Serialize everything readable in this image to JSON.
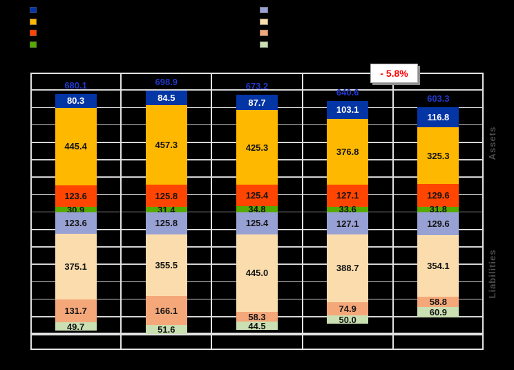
{
  "page": {
    "background": "#000000"
  },
  "legend": {
    "left_items": [
      {
        "name": "navy",
        "color": "#0435A5"
      },
      {
        "name": "amber",
        "color": "#FFB800"
      },
      {
        "name": "orange-red",
        "color": "#FF4500"
      },
      {
        "name": "green",
        "color": "#55AA00"
      }
    ],
    "right_items": [
      {
        "name": "periwinkle",
        "color": "#98A1D3"
      },
      {
        "name": "tan",
        "color": "#FBDDAD"
      },
      {
        "name": "salmon",
        "color": "#F4A87A"
      },
      {
        "name": "light-green",
        "color": "#CADFB2"
      }
    ]
  },
  "chart_data": {
    "type": "bar",
    "stacked": true,
    "diverging": true,
    "columns": 5,
    "categories": [
      "",
      "",
      "",
      "",
      ""
    ],
    "totals": {
      "values": [
        "680.1",
        "698.9",
        "673.2",
        "640.6",
        "603.3"
      ],
      "color": "#2139CE"
    },
    "series_assets": [
      {
        "name": "navy",
        "color": "#0435A5",
        "label_color": "#FFFFFF",
        "values": [
          "80.3",
          "84.5",
          "87.7",
          "103.1",
          "116.8"
        ]
      },
      {
        "name": "amber",
        "color": "#FFB800",
        "label_color": "#141414",
        "values": [
          "445.4",
          "457.3",
          "425.3",
          "376.8",
          "325.3"
        ]
      },
      {
        "name": "orange-red",
        "color": "#FF4500",
        "label_color": "#141414",
        "values": [
          "123.6",
          "125.8",
          "125.4",
          "127.1",
          "129.6"
        ]
      },
      {
        "name": "green",
        "color": "#55AA00",
        "label_color": "#141414",
        "values": [
          "30.9",
          "31.4",
          "34.8",
          "33.6",
          "31.8"
        ]
      }
    ],
    "series_liabilities": [
      {
        "name": "periwinkle",
        "color": "#98A1D3",
        "label_color": "#141414",
        "values": [
          "123.6",
          "125.8",
          "125.4",
          "127.1",
          "129.6"
        ]
      },
      {
        "name": "tan",
        "color": "#FBDDAD",
        "label_color": "#141414",
        "values": [
          "375.1",
          "355.5",
          "445.0",
          "388.7",
          "354.1"
        ]
      },
      {
        "name": "salmon",
        "color": "#F4A87A",
        "label_color": "#141414",
        "values": [
          "131.7",
          "166.1",
          "58.3",
          "74.9",
          "58.8"
        ]
      },
      {
        "name": "light-green",
        "color": "#CADFB2",
        "label_color": "#141414",
        "values": [
          "49.7",
          "51.6",
          "44.5",
          "50.0",
          "60.9"
        ]
      }
    ],
    "axis": {
      "units_per_gridline": 100,
      "assets_max": 800,
      "liabilities_max": 700,
      "grid": true
    },
    "annotation": {
      "text": "- 5.8%",
      "color": "#FF0000"
    },
    "right_labels": {
      "assets": "Assets",
      "liabilities": "Liabilities",
      "color": "#4D4D4D"
    }
  }
}
